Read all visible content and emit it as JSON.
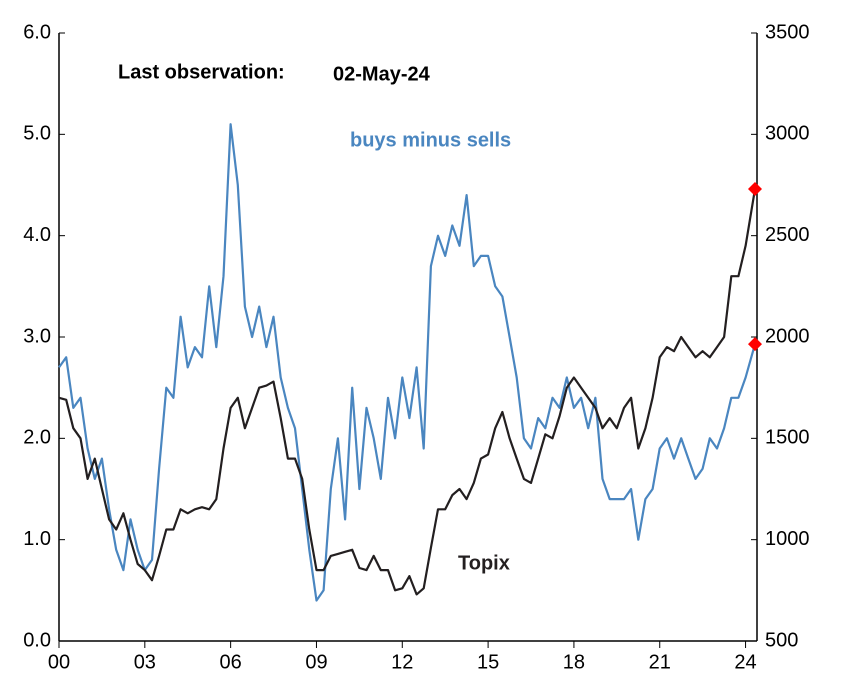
{
  "chart_data": {
    "type": "line",
    "last_observation_label": "Last observation:",
    "last_observation_date": "02-May-24",
    "last_marker_color": "#ff0000",
    "x": [
      2000,
      2000.25,
      2000.5,
      2000.75,
      2001,
      2001.25,
      2001.5,
      2001.75,
      2002,
      2002.25,
      2002.5,
      2002.75,
      2003,
      2003.25,
      2003.5,
      2003.75,
      2004,
      2004.25,
      2004.5,
      2004.75,
      2005,
      2005.25,
      2005.5,
      2005.75,
      2006,
      2006.25,
      2006.5,
      2006.75,
      2007,
      2007.25,
      2007.5,
      2007.75,
      2008,
      2008.25,
      2008.5,
      2008.75,
      2009,
      2009.25,
      2009.5,
      2009.75,
      2010,
      2010.25,
      2010.5,
      2010.75,
      2011,
      2011.25,
      2011.5,
      2011.75,
      2012,
      2012.25,
      2012.5,
      2012.75,
      2013,
      2013.25,
      2013.5,
      2013.75,
      2014,
      2014.25,
      2014.5,
      2014.75,
      2015,
      2015.25,
      2015.5,
      2015.75,
      2016,
      2016.25,
      2016.5,
      2016.75,
      2017,
      2017.25,
      2017.5,
      2017.75,
      2018,
      2018.25,
      2018.5,
      2018.75,
      2019,
      2019.25,
      2019.5,
      2019.75,
      2020,
      2020.25,
      2020.5,
      2020.75,
      2021,
      2021.25,
      2021.5,
      2021.75,
      2022,
      2022.25,
      2022.5,
      2022.75,
      2023,
      2023.25,
      2023.5,
      2023.75,
      2024,
      2024.33
    ],
    "series": [
      {
        "name": "buys minus sells",
        "color": "#4a86c0",
        "axis": "y",
        "values": [
          2.7,
          2.8,
          2.3,
          2.4,
          1.9,
          1.6,
          1.8,
          1.3,
          0.9,
          0.7,
          1.2,
          0.9,
          0.7,
          0.8,
          1.7,
          2.5,
          2.4,
          3.2,
          2.7,
          2.9,
          2.8,
          3.5,
          2.9,
          3.6,
          5.1,
          4.5,
          3.3,
          3.0,
          3.3,
          2.9,
          3.2,
          2.6,
          2.3,
          2.1,
          1.5,
          0.9,
          0.4,
          0.5,
          1.5,
          2.0,
          1.2,
          2.5,
          1.5,
          2.3,
          2.0,
          1.6,
          2.4,
          2.0,
          2.6,
          2.2,
          2.7,
          1.9,
          3.7,
          4.0,
          3.8,
          4.1,
          3.9,
          4.4,
          3.7,
          3.8,
          3.8,
          3.5,
          3.4,
          3.0,
          2.6,
          2.0,
          1.9,
          2.2,
          2.1,
          2.4,
          2.3,
          2.6,
          2.3,
          2.4,
          2.1,
          2.4,
          1.6,
          1.4,
          1.4,
          1.4,
          1.5,
          1.0,
          1.4,
          1.5,
          1.9,
          2.0,
          1.8,
          2.0,
          1.8,
          1.6,
          1.7,
          2.0,
          1.9,
          2.1,
          2.4,
          2.4,
          2.6,
          2.93
        ]
      },
      {
        "name": "Topix",
        "color": "#231f20",
        "axis": "y2",
        "values": [
          1700,
          1690,
          1550,
          1500,
          1300,
          1400,
          1250,
          1100,
          1050,
          1130,
          1000,
          880,
          850,
          800,
          920,
          1050,
          1050,
          1150,
          1130,
          1150,
          1160,
          1150,
          1200,
          1450,
          1650,
          1700,
          1550,
          1650,
          1750,
          1760,
          1780,
          1600,
          1400,
          1400,
          1300,
          1050,
          850,
          850,
          920,
          930,
          940,
          950,
          860,
          850,
          920,
          850,
          850,
          750,
          760,
          820,
          730,
          760,
          960,
          1150,
          1150,
          1220,
          1250,
          1200,
          1280,
          1400,
          1420,
          1550,
          1630,
          1500,
          1400,
          1300,
          1280,
          1400,
          1520,
          1500,
          1610,
          1750,
          1800,
          1750,
          1700,
          1650,
          1550,
          1600,
          1550,
          1650,
          1700,
          1450,
          1550,
          1700,
          1900,
          1950,
          1930,
          2000,
          1950,
          1900,
          1930,
          1900,
          1950,
          2000,
          2300,
          2300,
          2450,
          2730
        ]
      }
    ],
    "xlim": [
      2000,
      2024.4
    ],
    "xticks": [
      {
        "value": 2000,
        "label": "00"
      },
      {
        "value": 2003,
        "label": "03"
      },
      {
        "value": 2006,
        "label": "06"
      },
      {
        "value": 2009,
        "label": "09"
      },
      {
        "value": 2012,
        "label": "12"
      },
      {
        "value": 2015,
        "label": "15"
      },
      {
        "value": 2018,
        "label": "18"
      },
      {
        "value": 2021,
        "label": "21"
      },
      {
        "value": 2024,
        "label": "24"
      }
    ],
    "ylim": [
      0,
      6
    ],
    "yticks": [
      {
        "value": 0,
        "label": "0.0"
      },
      {
        "value": 1,
        "label": "1.0"
      },
      {
        "value": 2,
        "label": "2.0"
      },
      {
        "value": 3,
        "label": "3.0"
      },
      {
        "value": 4,
        "label": "4.0"
      },
      {
        "value": 5,
        "label": "5.0"
      },
      {
        "value": 6,
        "label": "6.0"
      }
    ],
    "y2lim": [
      500,
      3500
    ],
    "y2ticks": [
      500,
      1000,
      1500,
      2000,
      2500,
      3000,
      3500
    ]
  }
}
